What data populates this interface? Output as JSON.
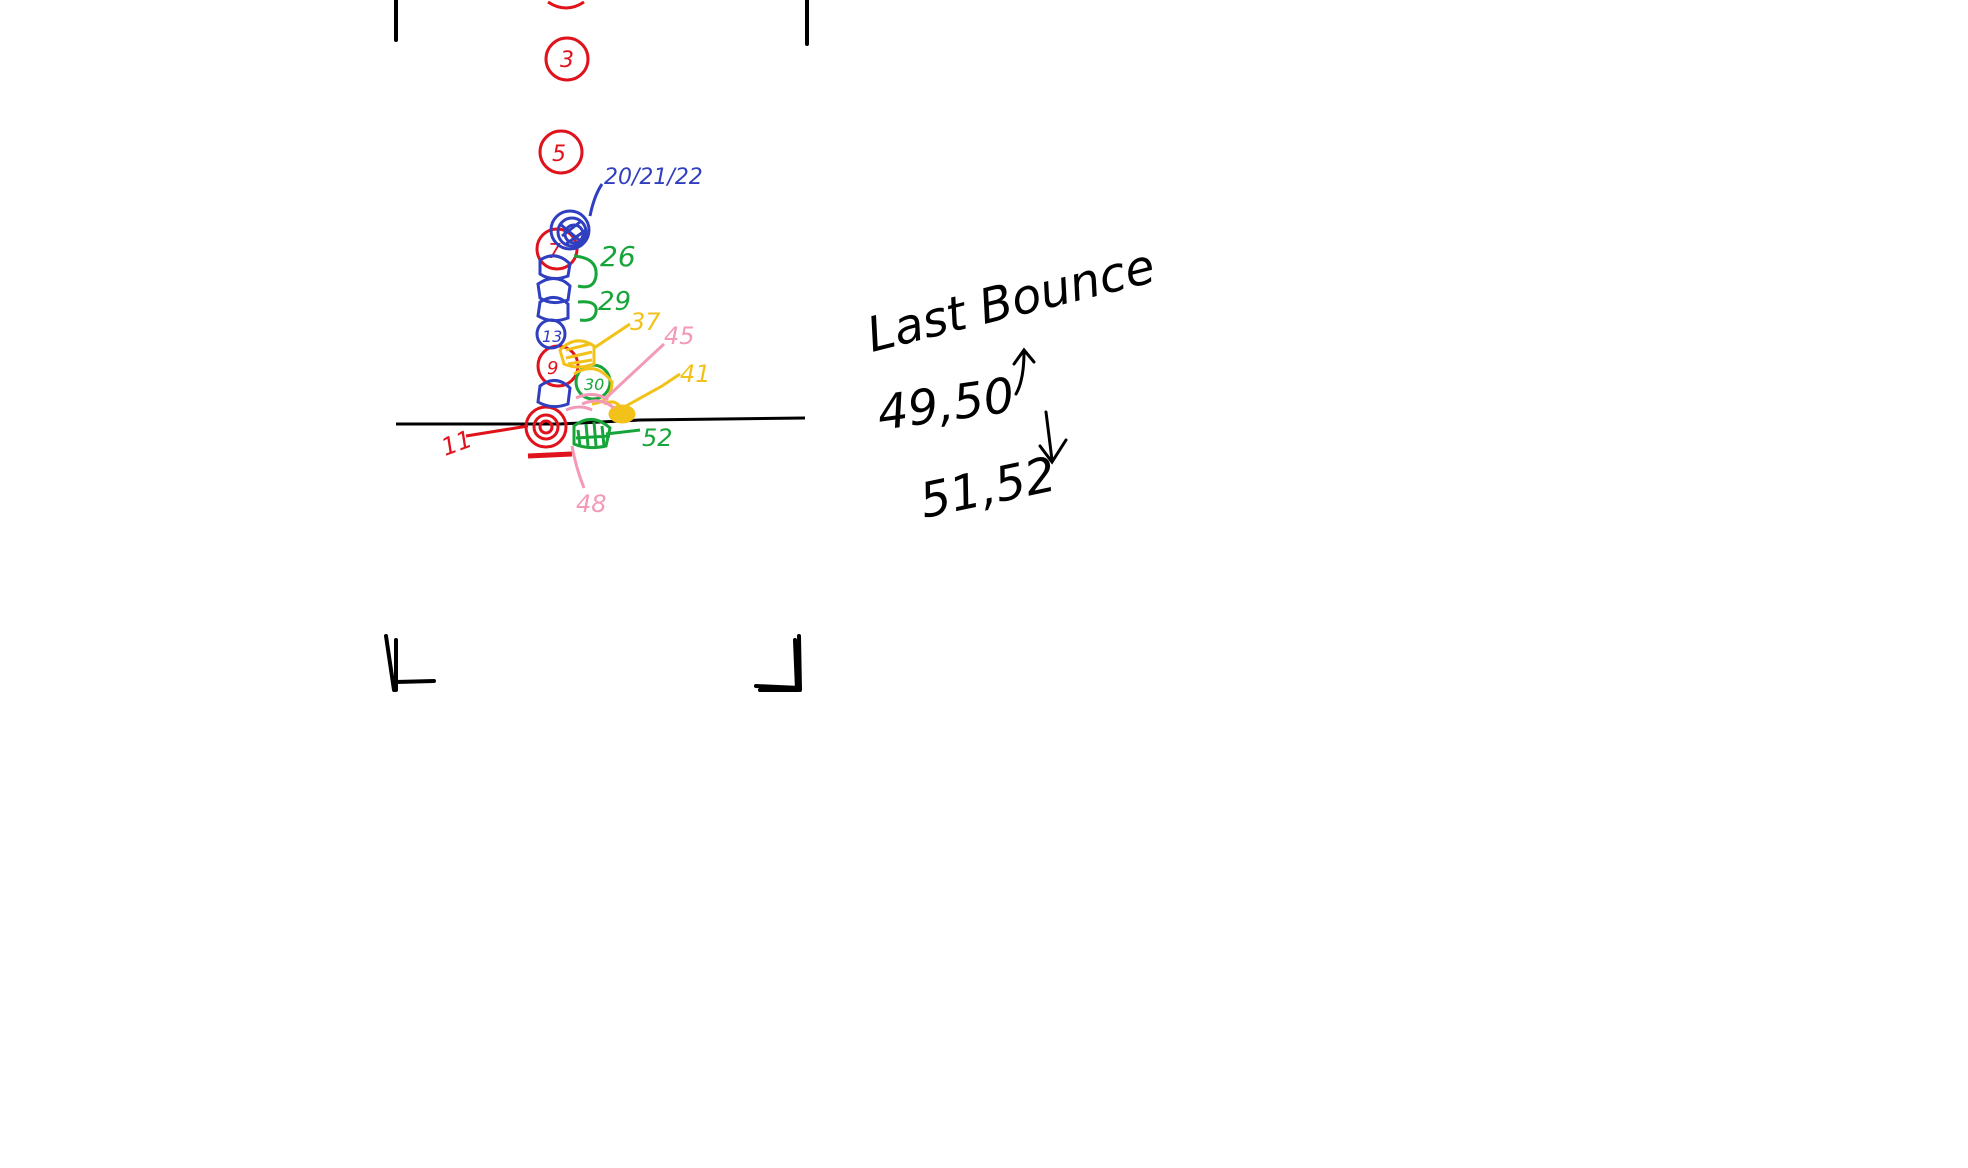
{
  "colors": {
    "ink": "#000000",
    "red": "#e0121b",
    "blue": "#2f3fc0",
    "green": "#17a53a",
    "yellow": "#f2c21a",
    "pink": "#f29ab8"
  },
  "labels": {
    "frame_3": "3",
    "frame_5": "5",
    "frame_7": "7",
    "frame_9": "9",
    "frame_11": "11",
    "frame_13": "13",
    "frames_20_21_22": "20/21/22",
    "frame_26": "26",
    "frame_29": "29",
    "frame_30": "30",
    "frame_37": "37",
    "frame_41": "41",
    "frame_45": "45",
    "frame_48": "48",
    "frame_52": "52"
  },
  "notes": {
    "heading": "Last Bounce",
    "up_frames": "49,50",
    "down_frames": "51,52"
  },
  "icons": {
    "up": "arrow-up-icon",
    "down": "arrow-down-icon"
  }
}
